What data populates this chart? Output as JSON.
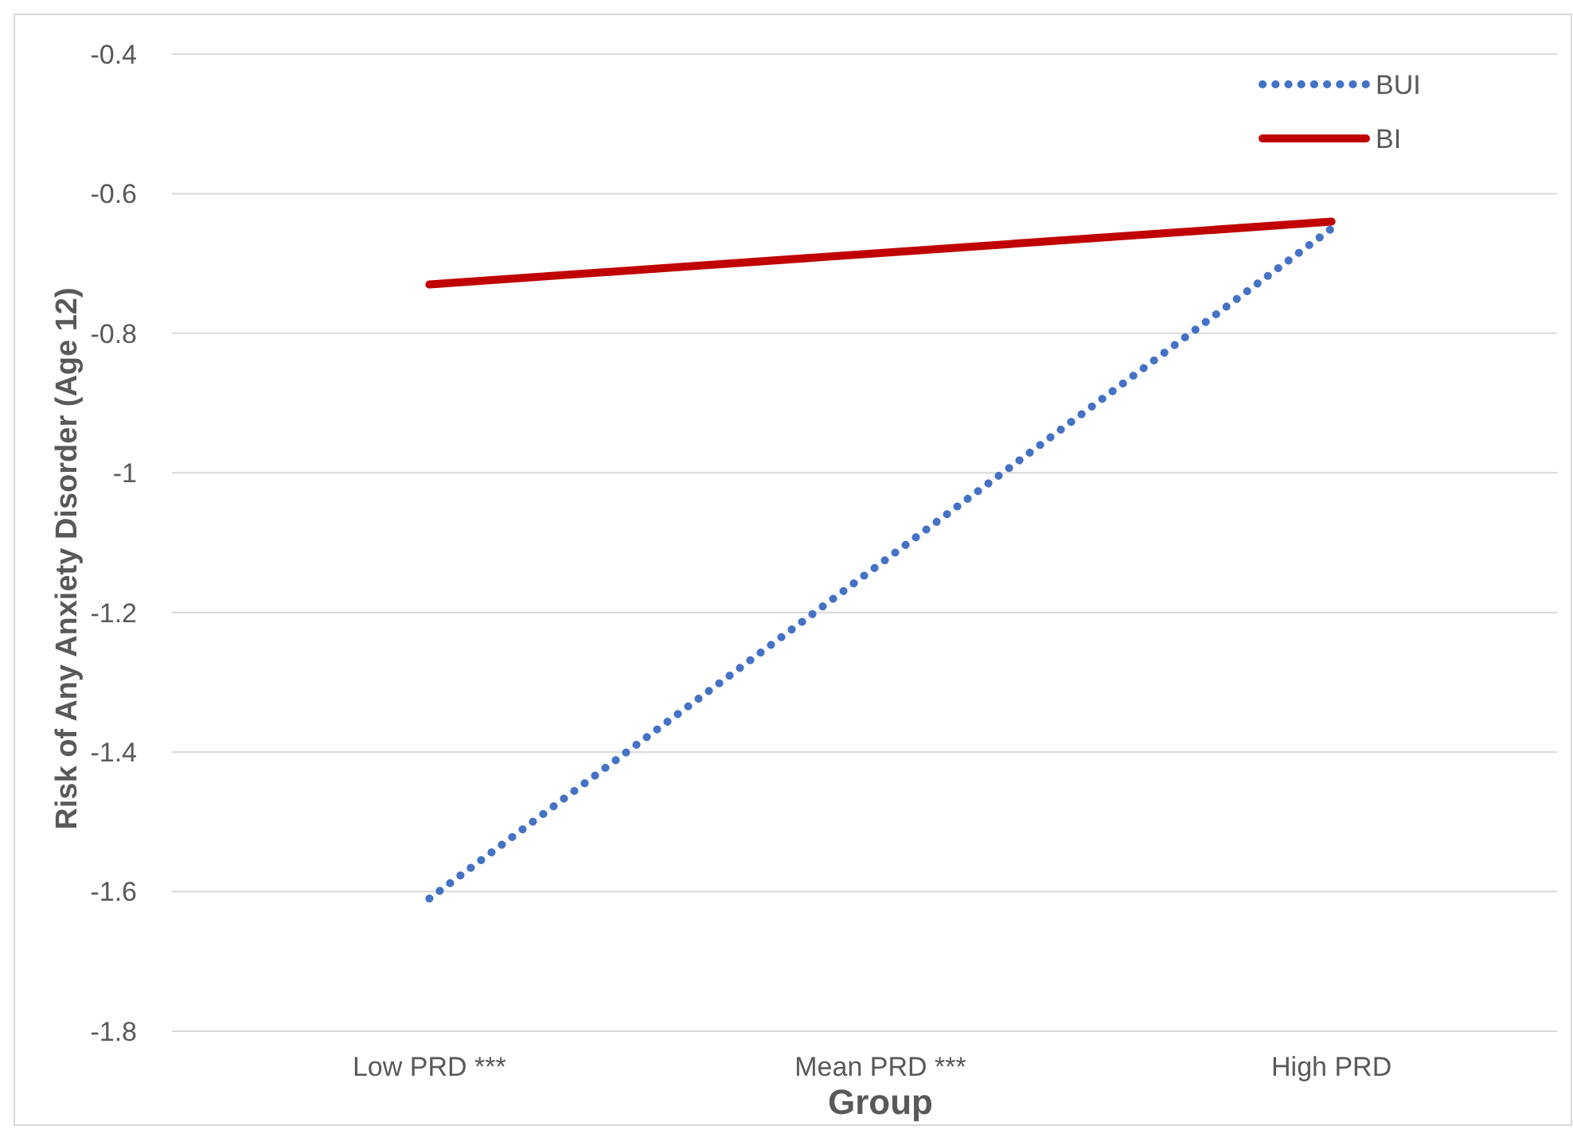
{
  "chart_data": {
    "type": "line",
    "xlabel": "Group",
    "ylabel": "Risk of Any Anxiety Disorder (Age 12)",
    "categories": [
      "Low PRD ***",
      "Mean PRD ***",
      "High PRD"
    ],
    "series": [
      {
        "name": "BUI",
        "color": "#4472c4",
        "line_style": "dotted",
        "values": [
          -1.61,
          -1.13,
          -0.65
        ]
      },
      {
        "name": "BI",
        "color": "#c00000",
        "line_style": "solid",
        "values": [
          -0.73,
          -0.685,
          -0.64
        ]
      }
    ],
    "ylim": [
      -1.8,
      -0.4
    ],
    "yticks": [
      -1.8,
      -1.6,
      -1.4,
      -1.2,
      {
        "value": -1,
        "label": "-1"
      },
      -0.8,
      -0.6,
      -0.4
    ],
    "grid": "y",
    "legend": "top right"
  }
}
